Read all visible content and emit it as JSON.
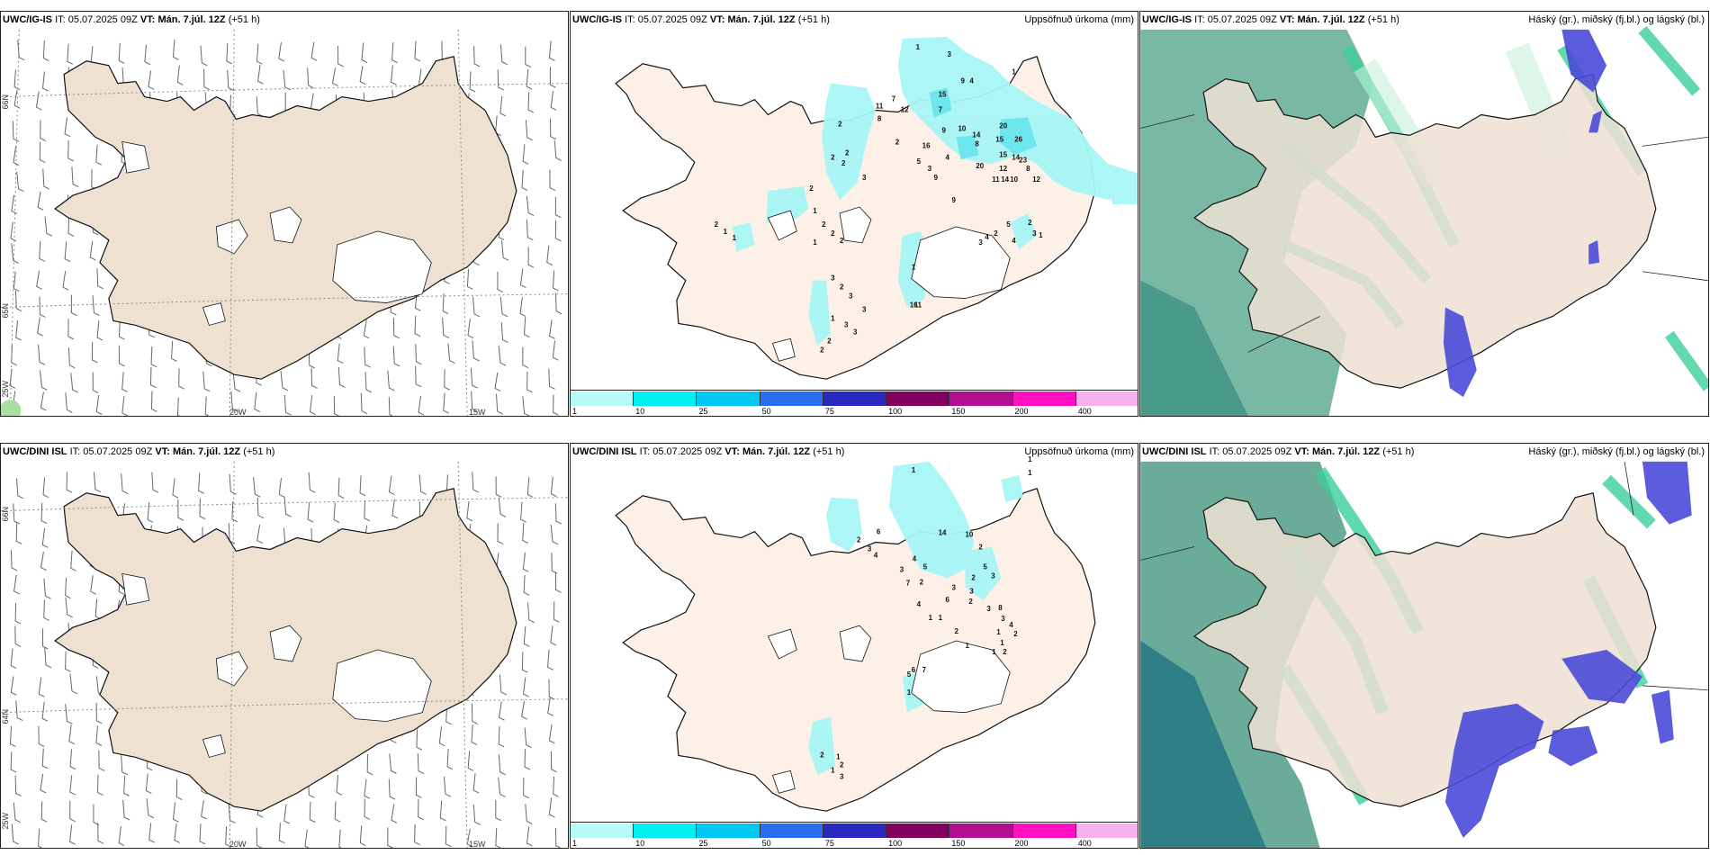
{
  "rows": [
    {
      "model": "UWC/IG-IS",
      "it_label": "IT:",
      "it_value": "05.07.2025 09Z",
      "vt_label": "VT:",
      "vt_value": "Mán. 7.júl. 12Z",
      "lead": "(+51 h)"
    },
    {
      "model": "UWC/DINI ISL",
      "it_label": "IT:",
      "it_value": "05.07.2025 09Z",
      "vt_label": "VT:",
      "vt_value": "Mán. 7.júl. 12Z",
      "lead": "(+51 h)"
    }
  ],
  "precip_title": "Uppsöfnuð úrkoma (mm)",
  "cloud_title": "Háský (gr.), miðský (fj.bl.) og lágský (bl.)",
  "axis_labels": {
    "lat66": "66N",
    "lat64": "64N",
    "lat65": "65N",
    "lon20": "20W",
    "lon15": "15W",
    "lon25": "25W"
  },
  "colorbar": {
    "labels": [
      "1",
      "10",
      "25",
      "50",
      "75",
      "100",
      "150",
      "200",
      "400"
    ],
    "colors": [
      "#b8fbfb",
      "#00f0f0",
      "#00c8f0",
      "#2a6ef0",
      "#2828c0",
      "#800060",
      "#b0108f",
      "#ff10c0",
      "#f8b0f0"
    ]
  },
  "precip_values_top": [
    "1",
    "3",
    "9",
    "4",
    "1",
    "15",
    "7",
    "7",
    "12",
    "11",
    "8",
    "9",
    "10",
    "14",
    "8",
    "20",
    "2",
    "15",
    "26",
    "4",
    "16",
    "2",
    "3",
    "5",
    "9",
    "20",
    "15",
    "14",
    "23",
    "8",
    "2",
    "2",
    "3",
    "2",
    "12",
    "10",
    "11",
    "14",
    "12",
    "9",
    "2",
    "3",
    "5",
    "2",
    "1",
    "3",
    "4",
    "16",
    "11",
    "2",
    "1",
    "2",
    "2",
    "2",
    "1",
    "2",
    "1",
    "1",
    "3",
    "2",
    "3",
    "3",
    "1",
    "3",
    "3",
    "2",
    "2",
    "4",
    "1"
  ],
  "precip_values_bottom": [
    "1",
    "1",
    "1",
    "6",
    "14",
    "10",
    "2",
    "3",
    "4",
    "4",
    "5",
    "2",
    "2",
    "6",
    "5",
    "2",
    "3",
    "3",
    "2",
    "4",
    "3",
    "7",
    "3",
    "8",
    "3",
    "1",
    "1",
    "2",
    "3",
    "4",
    "2",
    "1",
    "1",
    "2",
    "1",
    "1",
    "7",
    "6",
    "5",
    "1",
    "2",
    "1",
    "2",
    "1",
    "3"
  ]
}
